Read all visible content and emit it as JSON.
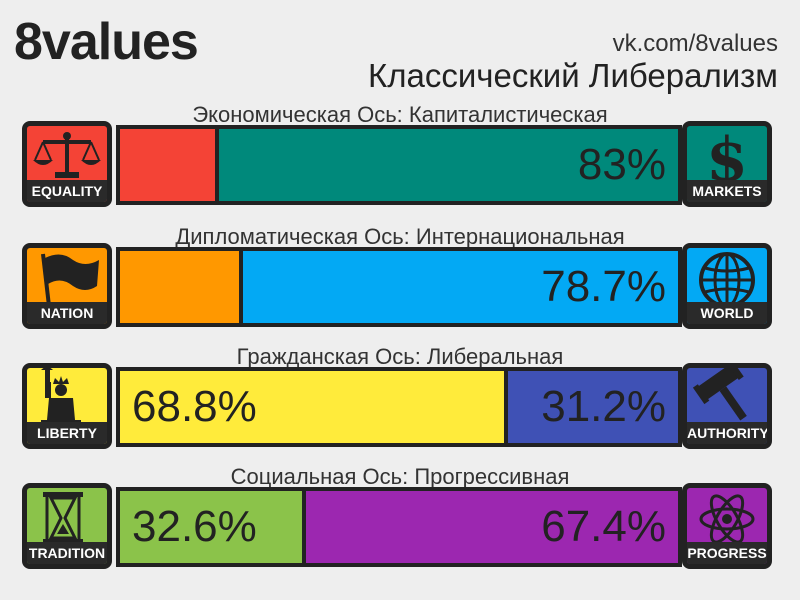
{
  "header": {
    "logo": "8values",
    "site": "vk.com/8values",
    "ideology": "Классический Либерализм"
  },
  "axes": [
    {
      "title": "Экономическая Ось: Капиталистическая",
      "left": {
        "label": "EQUALITY",
        "color": "#f44336",
        "icon": "scales-icon",
        "value": 17,
        "pct": ""
      },
      "right": {
        "label": "MARKETS",
        "color": "#00897b",
        "icon": "dollar-icon",
        "value": 83,
        "pct": "83%"
      }
    },
    {
      "title": "Дипломатическая Ось: Интернациональная",
      "left": {
        "label": "NATION",
        "color": "#ff9800",
        "icon": "flag-icon",
        "value": 21.3,
        "pct": ""
      },
      "right": {
        "label": "WORLD",
        "color": "#03a9f4",
        "icon": "globe-icon",
        "value": 78.7,
        "pct": "78.7%"
      }
    },
    {
      "title": "Гражданская Ось: Либеральная",
      "left": {
        "label": "LIBERTY",
        "color": "#ffeb3b",
        "icon": "statue-of-liberty-icon",
        "value": 68.8,
        "pct": "68.8%"
      },
      "right": {
        "label": "AUTHORITY",
        "color": "#3f51b5",
        "icon": "gavel-icon",
        "value": 31.2,
        "pct": "31.2%"
      }
    },
    {
      "title": "Социальная Ось: Прогрессивная",
      "left": {
        "label": "TRADITION",
        "color": "#8bc34a",
        "icon": "hourglass-icon",
        "value": 32.6,
        "pct": "32.6%"
      },
      "right": {
        "label": "PROGRESS",
        "color": "#9c27b0",
        "icon": "atom-icon",
        "value": 67.4,
        "pct": "67.4%"
      }
    }
  ]
}
